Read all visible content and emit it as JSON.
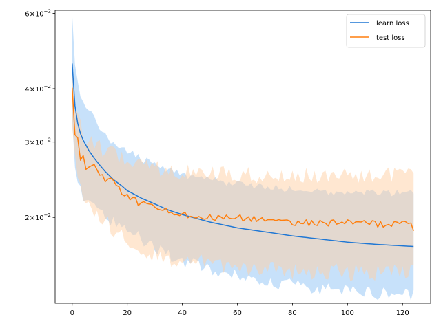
{
  "chart_data": {
    "type": "line",
    "title": "",
    "xlabel": "",
    "ylabel": "",
    "xlim": [
      -6.2,
      130.2
    ],
    "ylim": [
      0.0126,
      0.061
    ],
    "yscale": "log",
    "grid": false,
    "legend_position": "top-right",
    "x_ticks": [
      0,
      20,
      40,
      60,
      80,
      100,
      120
    ],
    "x_tick_labels": [
      "0",
      "20",
      "40",
      "60",
      "80",
      "100",
      "120"
    ],
    "y_major_ticks": [
      {
        "value": 0.02,
        "mantissa": "2",
        "base": "10",
        "exponent": "−2"
      },
      {
        "value": 0.03,
        "mantissa": "3",
        "base": "10",
        "exponent": "−2"
      },
      {
        "value": 0.04,
        "mantissa": "4",
        "base": "10",
        "exponent": "−2"
      },
      {
        "value": 0.06,
        "mantissa": "6",
        "base": "10",
        "exponent": "−2"
      }
    ],
    "y_minor_ticks": [
      0.05
    ],
    "x_count": 125,
    "series": [
      {
        "name": "learn loss",
        "color": "#1f77d4",
        "band_color": "#99c9f5",
        "anchors": [
          [
            0,
            0.0458
          ],
          [
            1,
            0.0365
          ],
          [
            2,
            0.0332
          ],
          [
            3,
            0.0314
          ],
          [
            4,
            0.0303
          ],
          [
            5,
            0.0295
          ],
          [
            6,
            0.0287
          ],
          [
            8,
            0.0275
          ],
          [
            10,
            0.0265
          ],
          [
            12,
            0.0256
          ],
          [
            15,
            0.0245
          ],
          [
            18,
            0.0237
          ],
          [
            20,
            0.0231
          ],
          [
            25,
            0.0222
          ],
          [
            30,
            0.0215
          ],
          [
            35,
            0.0208
          ],
          [
            40,
            0.0203
          ],
          [
            45,
            0.0199
          ],
          [
            50,
            0.0195
          ],
          [
            55,
            0.0192
          ],
          [
            60,
            0.0189
          ],
          [
            70,
            0.0185
          ],
          [
            80,
            0.0181
          ],
          [
            90,
            0.0178
          ],
          [
            100,
            0.0175
          ],
          [
            110,
            0.0173
          ],
          [
            124,
            0.0171
          ]
        ],
        "band_upper_anchors": [
          [
            0,
            0.0585
          ],
          [
            1,
            0.046
          ],
          [
            2,
            0.041
          ],
          [
            3,
            0.0385
          ],
          [
            5,
            0.0365
          ],
          [
            8,
            0.034
          ],
          [
            12,
            0.031
          ],
          [
            15,
            0.03
          ],
          [
            20,
            0.0285
          ],
          [
            25,
            0.0275
          ],
          [
            30,
            0.0265
          ],
          [
            35,
            0.0258
          ],
          [
            40,
            0.0252
          ],
          [
            50,
            0.0245
          ],
          [
            60,
            0.024
          ],
          [
            70,
            0.0236
          ],
          [
            80,
            0.0233
          ],
          [
            90,
            0.0231
          ],
          [
            100,
            0.0229
          ],
          [
            110,
            0.0228
          ],
          [
            124,
            0.0228
          ]
        ],
        "band_lower_anchors": [
          [
            0,
            0.0335
          ],
          [
            1,
            0.0265
          ],
          [
            2,
            0.0245
          ],
          [
            3,
            0.023
          ],
          [
            5,
            0.022
          ],
          [
            8,
            0.0212
          ],
          [
            12,
            0.0203
          ],
          [
            15,
            0.0196
          ],
          [
            20,
            0.0186
          ],
          [
            25,
            0.0178
          ],
          [
            30,
            0.017
          ],
          [
            35,
            0.0163
          ],
          [
            40,
            0.0158
          ],
          [
            50,
            0.0152
          ],
          [
            60,
            0.0146
          ],
          [
            70,
            0.0142
          ],
          [
            80,
            0.0139
          ],
          [
            90,
            0.0136
          ],
          [
            100,
            0.0134
          ],
          [
            110,
            0.0133
          ],
          [
            124,
            0.0132
          ]
        ]
      },
      {
        "name": "test loss",
        "color": "#ff7f0e",
        "band_color": "#ffcfa3",
        "anchors": [
          [
            0,
            0.0402
          ],
          [
            1,
            0.0312
          ],
          [
            2,
            0.0307
          ],
          [
            3,
            0.0272
          ],
          [
            4,
            0.0279
          ],
          [
            5,
            0.0259
          ],
          [
            6,
            0.0262
          ],
          [
            8,
            0.0266
          ],
          [
            10,
            0.0251
          ],
          [
            12,
            0.0244
          ],
          [
            15,
            0.0246
          ],
          [
            18,
            0.0227
          ],
          [
            20,
            0.0226
          ],
          [
            25,
            0.0214
          ],
          [
            30,
            0.0213
          ],
          [
            35,
            0.0207
          ],
          [
            40,
            0.0204
          ],
          [
            45,
            0.0202
          ],
          [
            50,
            0.02
          ],
          [
            60,
            0.02
          ],
          [
            70,
            0.0197
          ],
          [
            80,
            0.0195
          ],
          [
            90,
            0.0194
          ],
          [
            100,
            0.0194
          ],
          [
            110,
            0.0193
          ],
          [
            120,
            0.0193
          ],
          [
            123,
            0.0194
          ],
          [
            124,
            0.0186
          ]
        ],
        "band_upper_anchors": [
          [
            0,
            0.0452
          ],
          [
            1,
            0.037
          ],
          [
            2,
            0.034
          ],
          [
            4,
            0.031
          ],
          [
            6,
            0.03
          ],
          [
            10,
            0.029
          ],
          [
            15,
            0.0285
          ],
          [
            20,
            0.027
          ],
          [
            25,
            0.0262
          ],
          [
            30,
            0.026
          ],
          [
            40,
            0.0257
          ],
          [
            50,
            0.0254
          ],
          [
            60,
            0.0252
          ],
          [
            80,
            0.025
          ],
          [
            100,
            0.025
          ],
          [
            124,
            0.0251
          ]
        ],
        "band_lower_anchors": [
          [
            0,
            0.0335
          ],
          [
            1,
            0.027
          ],
          [
            2,
            0.024
          ],
          [
            4,
            0.022
          ],
          [
            6,
            0.021
          ],
          [
            10,
            0.0205
          ],
          [
            15,
            0.0185
          ],
          [
            20,
            0.0176
          ],
          [
            25,
            0.0168
          ],
          [
            30,
            0.0162
          ],
          [
            40,
            0.0158
          ],
          [
            50,
            0.0156
          ],
          [
            60,
            0.0152
          ],
          [
            80,
            0.015
          ],
          [
            100,
            0.0149
          ],
          [
            124,
            0.0149
          ]
        ]
      }
    ]
  }
}
